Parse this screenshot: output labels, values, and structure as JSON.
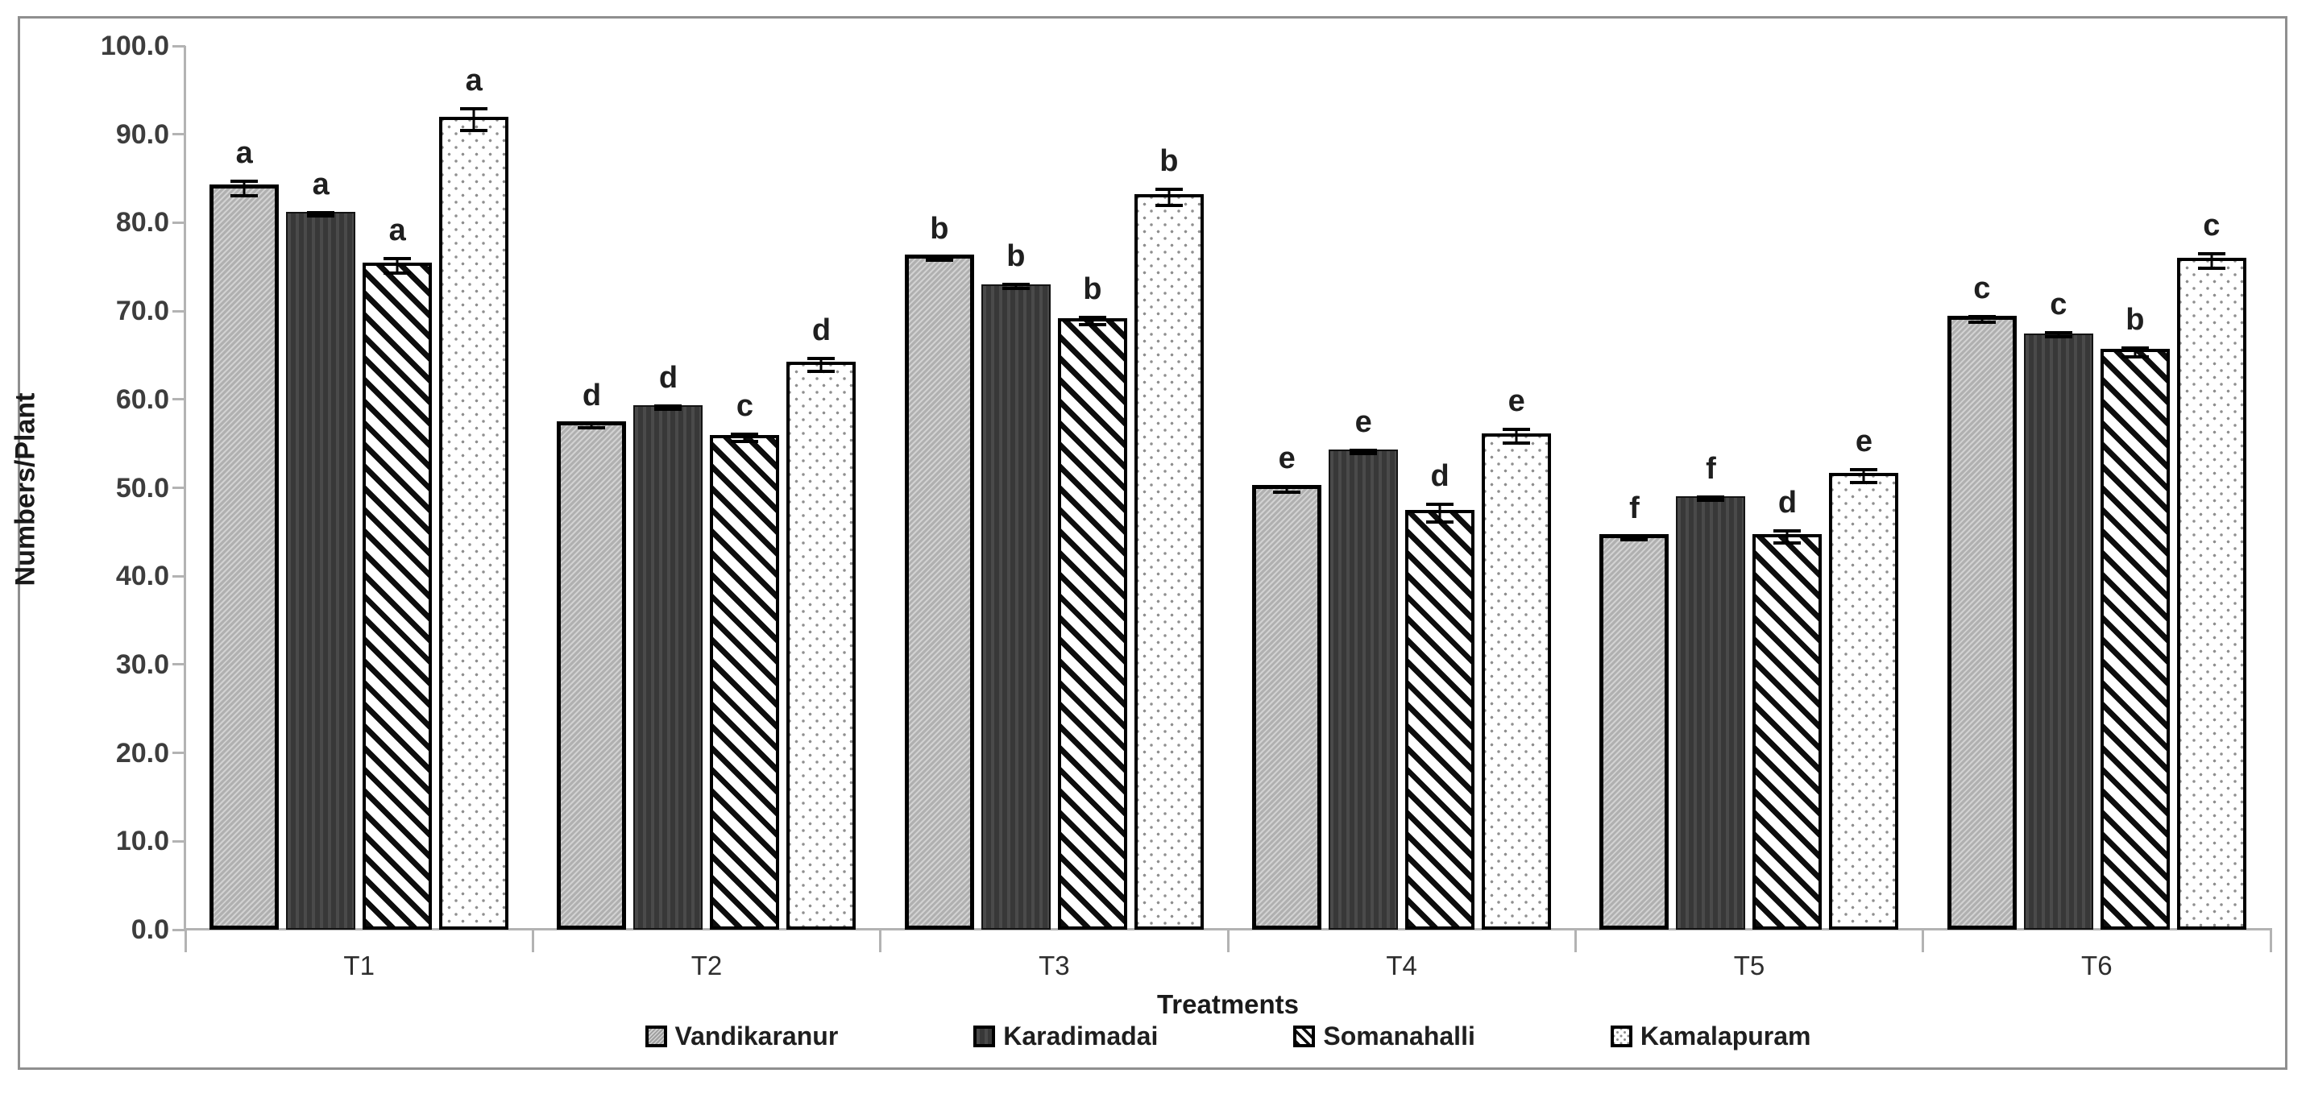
{
  "figure": {
    "background": "#ffffff",
    "frame_border_color": "#8f8f8f",
    "axis_color": "#b3b3b3",
    "text_color": "#1f1f1f"
  },
  "chart_data": {
    "type": "bar",
    "title": "",
    "xlabel": "Treatments",
    "ylabel": "Numbers/Plant",
    "ylim": [
      0,
      100
    ],
    "ytick_step": 10,
    "ytick_labels": [
      "100.0",
      "90.0",
      "80.0",
      "70.0",
      "60.0",
      "50.0",
      "40.0",
      "30.0",
      "20.0",
      "10.0",
      "0.0"
    ],
    "categories": [
      "T1",
      "T2",
      "T3",
      "T4",
      "T5",
      "T6"
    ],
    "grid": false,
    "error_bars": true,
    "legend_position": "bottom",
    "series": [
      {
        "name": "Vandikaranur",
        "pattern": "light-gray-fine-diagonal-hatch",
        "values": [
          84.3,
          57.5,
          76.4,
          50.3,
          44.8,
          69.5
        ],
        "errors": [
          1.0,
          0.4,
          0.4,
          0.5,
          0.3,
          0.5
        ],
        "letters": [
          "a",
          "d",
          "b",
          "e",
          "f",
          "c"
        ]
      },
      {
        "name": "Karadimadai",
        "pattern": "dark-charcoal-solid",
        "values": [
          81.2,
          59.3,
          73.0,
          54.3,
          49.0,
          67.5
        ],
        "errors": [
          0.3,
          0.3,
          0.4,
          0.3,
          0.3,
          0.4
        ],
        "letters": [
          "a",
          "d",
          "b",
          "e",
          "f",
          "c"
        ]
      },
      {
        "name": "Somanahalli",
        "pattern": "black-diagonal-stripes",
        "values": [
          75.5,
          56.0,
          69.2,
          47.5,
          44.8,
          65.7
        ],
        "errors": [
          1.0,
          0.6,
          0.6,
          1.2,
          0.9,
          0.7
        ],
        "letters": [
          "a",
          "c",
          "b",
          "d",
          "d",
          "b"
        ]
      },
      {
        "name": "Kamalapuram",
        "pattern": "white-dotted",
        "values": [
          92.0,
          64.3,
          83.2,
          56.2,
          51.7,
          76.0
        ],
        "errors": [
          1.4,
          0.9,
          1.1,
          1.0,
          0.9,
          1.0
        ],
        "letters": [
          "a",
          "d",
          "b",
          "e",
          "e",
          "c"
        ]
      }
    ]
  }
}
